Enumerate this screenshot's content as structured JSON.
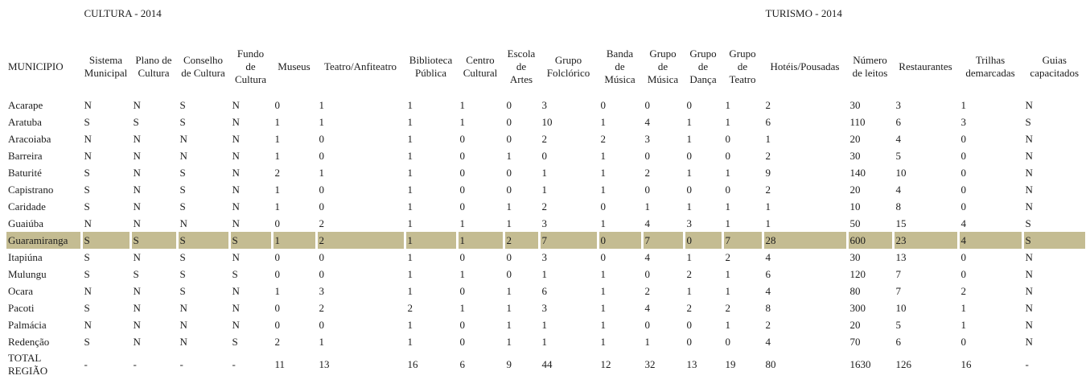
{
  "page": {
    "group_headers": {
      "cultura": "CULTURA - 2014",
      "turismo": "TURISMO - 2014"
    },
    "columns": [
      "MUNICIPIO",
      "Sistema Municipal",
      "Plano de Cultura",
      "Conselho de Cultura",
      "Fundo de Cultura",
      "Museus",
      "Teatro/Anfiteatro",
      "Biblioteca Pública",
      "Centro Cultural",
      "Escola de Artes",
      "Grupo Folclórico",
      "Banda de Música",
      "Grupo de Música",
      "Grupo de Dança",
      "Grupo de Teatro",
      "Hotéis/Pousadas",
      "Número de leitos",
      "Restaurantes",
      "Trilhas demarcadas",
      "Guias capacitados"
    ],
    "highlight_color": "#c4bc92",
    "rows": [
      {
        "name": "Acarape",
        "highlighted": false,
        "values": [
          "N",
          "N",
          "S",
          "N",
          "0",
          "1",
          "1",
          "1",
          "0",
          "3",
          "0",
          "0",
          "0",
          "1",
          "2",
          "30",
          "3",
          "1",
          "N"
        ]
      },
      {
        "name": "Aratuba",
        "highlighted": false,
        "values": [
          "S",
          "S",
          "S",
          "N",
          "1",
          "1",
          "1",
          "1",
          "0",
          "10",
          "1",
          "4",
          "1",
          "1",
          "6",
          "110",
          "6",
          "3",
          "S"
        ]
      },
      {
        "name": "Aracoiaba",
        "highlighted": false,
        "values": [
          "N",
          "N",
          "N",
          "N",
          "1",
          "0",
          "1",
          "0",
          "0",
          "2",
          "2",
          "3",
          "1",
          "0",
          "1",
          "20",
          "4",
          "0",
          "N"
        ]
      },
      {
        "name": "Barreira",
        "highlighted": false,
        "values": [
          "N",
          "N",
          "N",
          "N",
          "1",
          "0",
          "1",
          "0",
          "1",
          "0",
          "1",
          "0",
          "0",
          "0",
          "2",
          "30",
          "5",
          "0",
          "N"
        ]
      },
      {
        "name": "Baturité",
        "highlighted": false,
        "values": [
          "S",
          "N",
          "S",
          "N",
          "2",
          "1",
          "1",
          "0",
          "0",
          "1",
          "1",
          "2",
          "1",
          "1",
          "9",
          "140",
          "10",
          "0",
          "N"
        ]
      },
      {
        "name": "Capistrano",
        "highlighted": false,
        "values": [
          "S",
          "N",
          "S",
          "N",
          "1",
          "0",
          "1",
          "0",
          "0",
          "1",
          "1",
          "0",
          "0",
          "0",
          "2",
          "20",
          "4",
          "0",
          "N"
        ]
      },
      {
        "name": "Caridade",
        "highlighted": false,
        "values": [
          "S",
          "N",
          "S",
          "N",
          "1",
          "0",
          "1",
          "0",
          "1",
          "2",
          "0",
          "1",
          "1",
          "1",
          "1",
          "10",
          "8",
          "0",
          "N"
        ]
      },
      {
        "name": "Guaiúba",
        "highlighted": false,
        "values": [
          "N",
          "N",
          "N",
          "N",
          "0",
          "2",
          "1",
          "1",
          "1",
          "3",
          "1",
          "4",
          "3",
          "1",
          "1",
          "50",
          "15",
          "4",
          "S"
        ]
      },
      {
        "name": "Guaramiranga",
        "highlighted": true,
        "values": [
          "S",
          "S",
          "S",
          "S",
          "1",
          "2",
          "1",
          "1",
          "2",
          "7",
          "0",
          "7",
          "0",
          "7",
          "28",
          "600",
          "23",
          "4",
          "S"
        ]
      },
      {
        "name": "Itapiúna",
        "highlighted": false,
        "values": [
          "S",
          "N",
          "S",
          "N",
          "0",
          "0",
          "1",
          "0",
          "0",
          "3",
          "0",
          "4",
          "1",
          "2",
          "4",
          "30",
          "13",
          "0",
          "N"
        ]
      },
      {
        "name": "Mulungu",
        "highlighted": false,
        "values": [
          "S",
          "S",
          "S",
          "S",
          "0",
          "0",
          "1",
          "1",
          "0",
          "1",
          "1",
          "0",
          "2",
          "1",
          "6",
          "120",
          "7",
          "0",
          "N"
        ]
      },
      {
        "name": "Ocara",
        "highlighted": false,
        "values": [
          "N",
          "N",
          "S",
          "N",
          "1",
          "3",
          "1",
          "0",
          "1",
          "6",
          "1",
          "2",
          "1",
          "1",
          "4",
          "80",
          "7",
          "2",
          "N"
        ]
      },
      {
        "name": "Pacoti",
        "highlighted": false,
        "values": [
          "S",
          "N",
          "N",
          "N",
          "0",
          "2",
          "2",
          "1",
          "1",
          "3",
          "1",
          "4",
          "2",
          "2",
          "8",
          "300",
          "10",
          "1",
          "N"
        ]
      },
      {
        "name": "Palmácia",
        "highlighted": false,
        "values": [
          "N",
          "N",
          "N",
          "N",
          "0",
          "0",
          "1",
          "0",
          "1",
          "1",
          "1",
          "0",
          "0",
          "1",
          "2",
          "20",
          "5",
          "1",
          "N"
        ]
      },
      {
        "name": "Redenção",
        "highlighted": false,
        "values": [
          "S",
          "N",
          "N",
          "S",
          "2",
          "1",
          "1",
          "0",
          "1",
          "1",
          "1",
          "1",
          "0",
          "0",
          "4",
          "70",
          "6",
          "0",
          "N"
        ]
      },
      {
        "name": "TOTAL REGIÃO",
        "highlighted": false,
        "total": true,
        "values": [
          "-",
          "-",
          "-",
          "-",
          "11",
          "13",
          "16",
          "6",
          "9",
          "44",
          "12",
          "32",
          "13",
          "19",
          "80",
          "1630",
          "126",
          "16",
          "-"
        ]
      }
    ]
  }
}
